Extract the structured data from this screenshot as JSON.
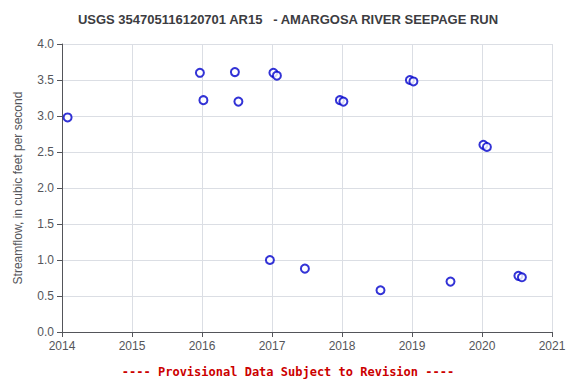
{
  "chart_data": {
    "type": "scatter",
    "title": "USGS 354705116120701 AR15   - AMARGOSA RIVER SEEPAGE RUN",
    "ylabel": "Streamflow, in cubic feet per second",
    "x": [
      2014.08,
      2015.97,
      2016.02,
      2016.47,
      2016.52,
      2016.97,
      2017.02,
      2017.07,
      2017.47,
      2017.97,
      2018.02,
      2018.55,
      2018.97,
      2019.02,
      2019.55,
      2020.02,
      2020.07,
      2020.52,
      2020.57
    ],
    "values": [
      2.98,
      3.6,
      3.22,
      3.61,
      3.2,
      1.0,
      3.6,
      3.56,
      0.88,
      3.22,
      3.2,
      0.58,
      3.5,
      3.48,
      0.7,
      2.6,
      2.57,
      0.78,
      0.76
    ],
    "color": "#0000CC",
    "marker": "open_circle",
    "xlim": [
      2014,
      2021
    ],
    "ylim": [
      0,
      4
    ],
    "xticks": [
      2014,
      2015,
      2016,
      2017,
      2018,
      2019,
      2020,
      2021
    ],
    "yticks": [
      {
        "value": 0,
        "label": "0.0"
      },
      0.5,
      {
        "value": 1,
        "label": "1.0"
      },
      1.5,
      {
        "value": 2,
        "label": "2.0"
      },
      2.5,
      {
        "value": 3,
        "label": "3.0"
      },
      3.5,
      {
        "value": 4,
        "label": "4.0"
      }
    ],
    "grid": true,
    "annotations": [
      {
        "text": "---- Provisional Data Subject to Revision ----",
        "color": "#CC0000"
      }
    ]
  }
}
